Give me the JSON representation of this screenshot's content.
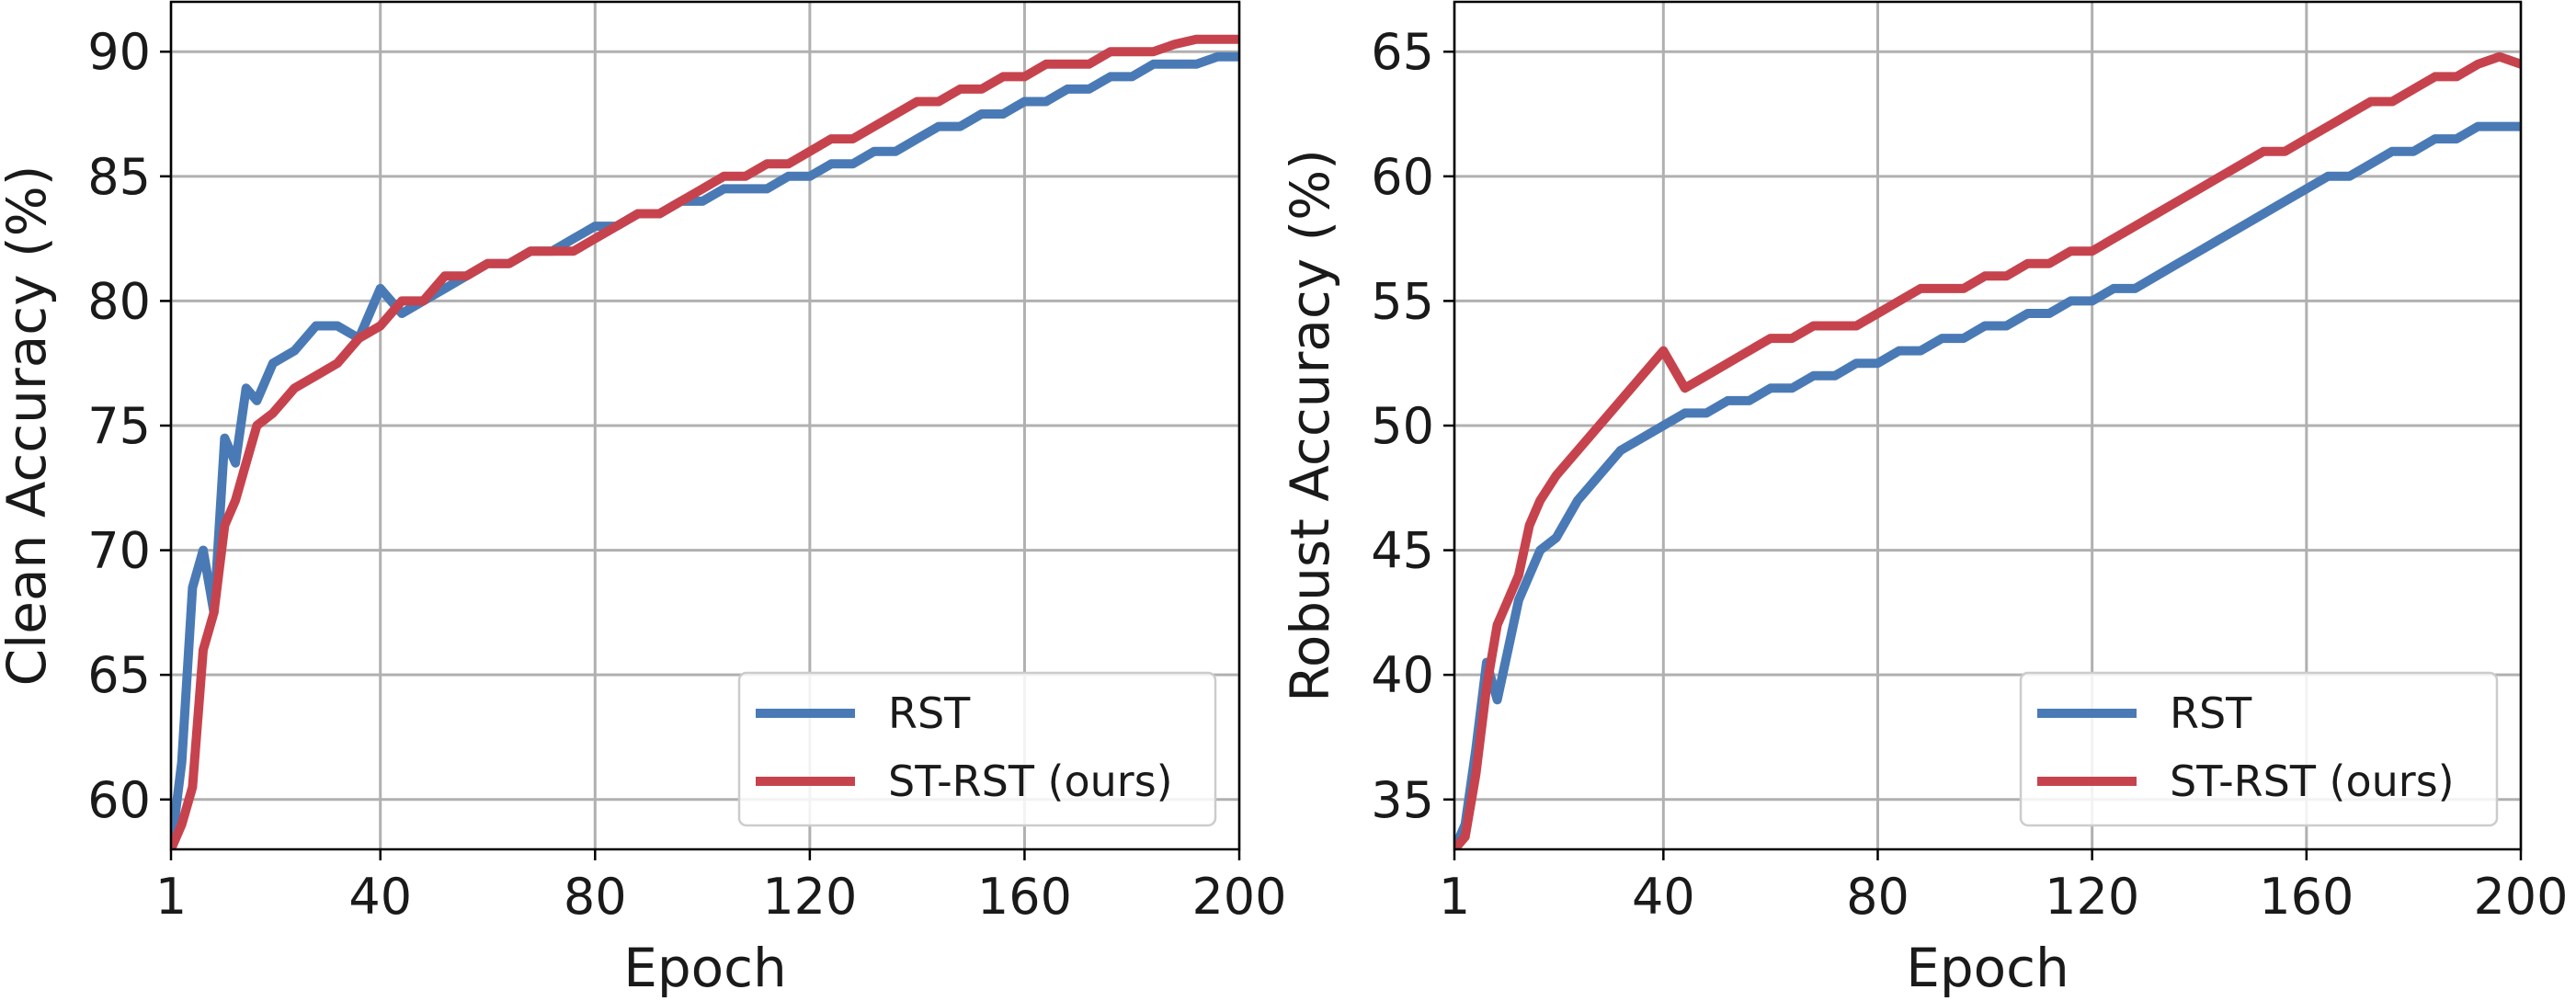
{
  "colors": {
    "rst": "#4a7ab5",
    "st_rst": "#c6434d",
    "grid": "#b0b0b0"
  },
  "chart_data": [
    {
      "type": "line",
      "xlabel": "Epoch",
      "ylabel": "Clean Accuracy (%)",
      "xlim": [
        1,
        200
      ],
      "ylim": [
        58,
        92
      ],
      "xticks": [
        1,
        40,
        80,
        120,
        160,
        200
      ],
      "yticks": [
        60,
        65,
        70,
        75,
        80,
        85,
        90
      ],
      "grid": true,
      "legend_position": "lower right",
      "series": [
        {
          "name": "RST",
          "color_key": "rst",
          "x": [
            1,
            3,
            5,
            7,
            9,
            11,
            13,
            15,
            17,
            20,
            24,
            28,
            32,
            36,
            40,
            44,
            48,
            52,
            56,
            60,
            64,
            68,
            72,
            76,
            80,
            84,
            88,
            92,
            96,
            100,
            104,
            108,
            112,
            116,
            120,
            124,
            128,
            132,
            136,
            140,
            144,
            148,
            152,
            156,
            160,
            164,
            168,
            172,
            176,
            180,
            184,
            188,
            192,
            196,
            200
          ],
          "y": [
            58,
            61.5,
            68.5,
            70,
            67.5,
            74.5,
            73.5,
            76.5,
            76,
            77.5,
            78,
            79,
            79,
            78.5,
            80.5,
            79.5,
            80,
            80.5,
            81,
            81.5,
            81.5,
            82,
            82,
            82.5,
            83,
            83,
            83.5,
            83.5,
            84,
            84,
            84.5,
            84.5,
            84.5,
            85,
            85,
            85.5,
            85.5,
            86,
            86,
            86.5,
            87,
            87,
            87.5,
            87.5,
            88,
            88,
            88.5,
            88.5,
            89,
            89,
            89.5,
            89.5,
            89.5,
            89.8,
            89.8
          ]
        },
        {
          "name": "ST-RST (ours)",
          "color_key": "st_rst",
          "x": [
            1,
            3,
            5,
            7,
            9,
            11,
            13,
            15,
            17,
            20,
            24,
            28,
            32,
            36,
            40,
            44,
            48,
            52,
            56,
            60,
            64,
            68,
            72,
            76,
            80,
            84,
            88,
            92,
            96,
            100,
            104,
            108,
            112,
            116,
            120,
            124,
            128,
            132,
            136,
            140,
            144,
            148,
            152,
            156,
            160,
            164,
            168,
            172,
            176,
            180,
            184,
            188,
            192,
            196,
            200
          ],
          "y": [
            58,
            59,
            60.5,
            66,
            67.5,
            71,
            72,
            73.5,
            75,
            75.5,
            76.5,
            77,
            77.5,
            78.5,
            79,
            80,
            80,
            81,
            81,
            81.5,
            81.5,
            82,
            82,
            82,
            82.5,
            83,
            83.5,
            83.5,
            84,
            84.5,
            85,
            85,
            85.5,
            85.5,
            86,
            86.5,
            86.5,
            87,
            87.5,
            88,
            88,
            88.5,
            88.5,
            89,
            89,
            89.5,
            89.5,
            89.5,
            90,
            90,
            90,
            90.3,
            90.5,
            90.5,
            90.5
          ]
        }
      ]
    },
    {
      "type": "line",
      "xlabel": "Epoch",
      "ylabel": "Robust Accuracy (%)",
      "xlim": [
        1,
        200
      ],
      "ylim": [
        33,
        67
      ],
      "xticks": [
        1,
        40,
        80,
        120,
        160,
        200
      ],
      "yticks": [
        35,
        40,
        45,
        50,
        55,
        60,
        65
      ],
      "grid": true,
      "legend_position": "lower right",
      "series": [
        {
          "name": "RST",
          "color_key": "rst",
          "x": [
            1,
            3,
            5,
            7,
            9,
            11,
            13,
            15,
            17,
            20,
            24,
            28,
            32,
            36,
            40,
            44,
            48,
            52,
            56,
            60,
            64,
            68,
            72,
            76,
            80,
            84,
            88,
            92,
            96,
            100,
            104,
            108,
            112,
            116,
            120,
            124,
            128,
            132,
            136,
            140,
            144,
            148,
            152,
            156,
            160,
            164,
            168,
            172,
            176,
            180,
            184,
            188,
            192,
            196,
            200
          ],
          "y": [
            33,
            34,
            37,
            40.5,
            39,
            41,
            43,
            44,
            45,
            45.5,
            47,
            48,
            49,
            49.5,
            50,
            50.5,
            50.5,
            51,
            51,
            51.5,
            51.5,
            52,
            52,
            52.5,
            52.5,
            53,
            53,
            53.5,
            53.5,
            54,
            54,
            54.5,
            54.5,
            55,
            55,
            55.5,
            55.5,
            56,
            56.5,
            57,
            57.5,
            58,
            58.5,
            59,
            59.5,
            60,
            60,
            60.5,
            61,
            61,
            61.5,
            61.5,
            62,
            62,
            62
          ]
        },
        {
          "name": "ST-RST (ours)",
          "color_key": "st_rst",
          "x": [
            1,
            3,
            5,
            7,
            9,
            11,
            13,
            15,
            17,
            20,
            24,
            28,
            32,
            36,
            40,
            44,
            48,
            52,
            56,
            60,
            64,
            68,
            72,
            76,
            80,
            84,
            88,
            92,
            96,
            100,
            104,
            108,
            112,
            116,
            120,
            124,
            128,
            132,
            136,
            140,
            144,
            148,
            152,
            156,
            160,
            164,
            168,
            172,
            176,
            180,
            184,
            188,
            192,
            196,
            200
          ],
          "y": [
            33,
            33.5,
            36,
            39.5,
            42,
            43,
            44,
            46,
            47,
            48,
            49,
            50,
            51,
            52,
            53,
            51.5,
            52,
            52.5,
            53,
            53.5,
            53.5,
            54,
            54,
            54,
            54.5,
            55,
            55.5,
            55.5,
            55.5,
            56,
            56,
            56.5,
            56.5,
            57,
            57,
            57.5,
            58,
            58.5,
            59,
            59.5,
            60,
            60.5,
            61,
            61,
            61.5,
            62,
            62.5,
            63,
            63,
            63.5,
            64,
            64,
            64.5,
            64.8,
            64.5
          ]
        }
      ]
    }
  ]
}
